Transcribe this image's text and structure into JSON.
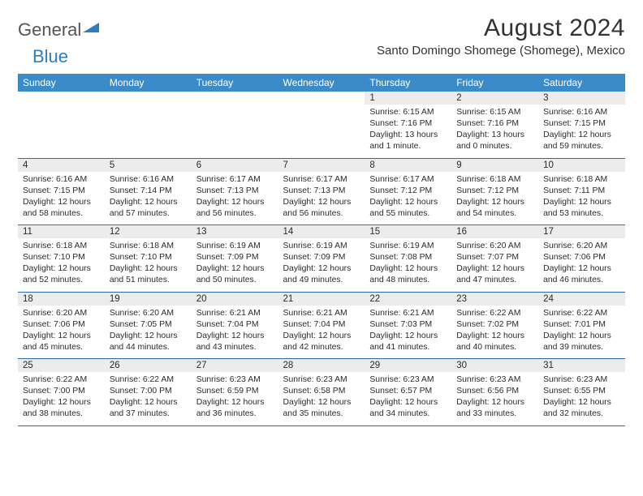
{
  "brand": {
    "part1": "General",
    "part2": "Blue"
  },
  "title": "August 2024",
  "subtitle": "Santo Domingo Shomege (Shomege), Mexico",
  "dow": [
    "Sunday",
    "Monday",
    "Tuesday",
    "Wednesday",
    "Thursday",
    "Friday",
    "Saturday"
  ],
  "colors": {
    "header_bg": "#3b8bc9",
    "row_divider": "#2f6aa3",
    "daynum_bg": "#ececec",
    "brand_blue": "#2e7cc1"
  },
  "weeks": [
    {
      "nums": [
        "",
        "",
        "",
        "",
        "1",
        "2",
        "3"
      ],
      "cells": [
        null,
        null,
        null,
        null,
        {
          "sr": "6:15 AM",
          "ss": "7:16 PM",
          "dl": "13 hours and 1 minute."
        },
        {
          "sr": "6:15 AM",
          "ss": "7:16 PM",
          "dl": "13 hours and 0 minutes."
        },
        {
          "sr": "6:16 AM",
          "ss": "7:15 PM",
          "dl": "12 hours and 59 minutes."
        }
      ]
    },
    {
      "nums": [
        "4",
        "5",
        "6",
        "7",
        "8",
        "9",
        "10"
      ],
      "cells": [
        {
          "sr": "6:16 AM",
          "ss": "7:15 PM",
          "dl": "12 hours and 58 minutes."
        },
        {
          "sr": "6:16 AM",
          "ss": "7:14 PM",
          "dl": "12 hours and 57 minutes."
        },
        {
          "sr": "6:17 AM",
          "ss": "7:13 PM",
          "dl": "12 hours and 56 minutes."
        },
        {
          "sr": "6:17 AM",
          "ss": "7:13 PM",
          "dl": "12 hours and 56 minutes."
        },
        {
          "sr": "6:17 AM",
          "ss": "7:12 PM",
          "dl": "12 hours and 55 minutes."
        },
        {
          "sr": "6:18 AM",
          "ss": "7:12 PM",
          "dl": "12 hours and 54 minutes."
        },
        {
          "sr": "6:18 AM",
          "ss": "7:11 PM",
          "dl": "12 hours and 53 minutes."
        }
      ]
    },
    {
      "nums": [
        "11",
        "12",
        "13",
        "14",
        "15",
        "16",
        "17"
      ],
      "cells": [
        {
          "sr": "6:18 AM",
          "ss": "7:10 PM",
          "dl": "12 hours and 52 minutes."
        },
        {
          "sr": "6:18 AM",
          "ss": "7:10 PM",
          "dl": "12 hours and 51 minutes."
        },
        {
          "sr": "6:19 AM",
          "ss": "7:09 PM",
          "dl": "12 hours and 50 minutes."
        },
        {
          "sr": "6:19 AM",
          "ss": "7:09 PM",
          "dl": "12 hours and 49 minutes."
        },
        {
          "sr": "6:19 AM",
          "ss": "7:08 PM",
          "dl": "12 hours and 48 minutes."
        },
        {
          "sr": "6:20 AM",
          "ss": "7:07 PM",
          "dl": "12 hours and 47 minutes."
        },
        {
          "sr": "6:20 AM",
          "ss": "7:06 PM",
          "dl": "12 hours and 46 minutes."
        }
      ]
    },
    {
      "nums": [
        "18",
        "19",
        "20",
        "21",
        "22",
        "23",
        "24"
      ],
      "cells": [
        {
          "sr": "6:20 AM",
          "ss": "7:06 PM",
          "dl": "12 hours and 45 minutes."
        },
        {
          "sr": "6:20 AM",
          "ss": "7:05 PM",
          "dl": "12 hours and 44 minutes."
        },
        {
          "sr": "6:21 AM",
          "ss": "7:04 PM",
          "dl": "12 hours and 43 minutes."
        },
        {
          "sr": "6:21 AM",
          "ss": "7:04 PM",
          "dl": "12 hours and 42 minutes."
        },
        {
          "sr": "6:21 AM",
          "ss": "7:03 PM",
          "dl": "12 hours and 41 minutes."
        },
        {
          "sr": "6:22 AM",
          "ss": "7:02 PM",
          "dl": "12 hours and 40 minutes."
        },
        {
          "sr": "6:22 AM",
          "ss": "7:01 PM",
          "dl": "12 hours and 39 minutes."
        }
      ]
    },
    {
      "nums": [
        "25",
        "26",
        "27",
        "28",
        "29",
        "30",
        "31"
      ],
      "cells": [
        {
          "sr": "6:22 AM",
          "ss": "7:00 PM",
          "dl": "12 hours and 38 minutes."
        },
        {
          "sr": "6:22 AM",
          "ss": "7:00 PM",
          "dl": "12 hours and 37 minutes."
        },
        {
          "sr": "6:23 AM",
          "ss": "6:59 PM",
          "dl": "12 hours and 36 minutes."
        },
        {
          "sr": "6:23 AM",
          "ss": "6:58 PM",
          "dl": "12 hours and 35 minutes."
        },
        {
          "sr": "6:23 AM",
          "ss": "6:57 PM",
          "dl": "12 hours and 34 minutes."
        },
        {
          "sr": "6:23 AM",
          "ss": "6:56 PM",
          "dl": "12 hours and 33 minutes."
        },
        {
          "sr": "6:23 AM",
          "ss": "6:55 PM",
          "dl": "12 hours and 32 minutes."
        }
      ]
    }
  ],
  "labels": {
    "sunrise": "Sunrise: ",
    "sunset": "Sunset: ",
    "daylight": "Daylight: "
  }
}
